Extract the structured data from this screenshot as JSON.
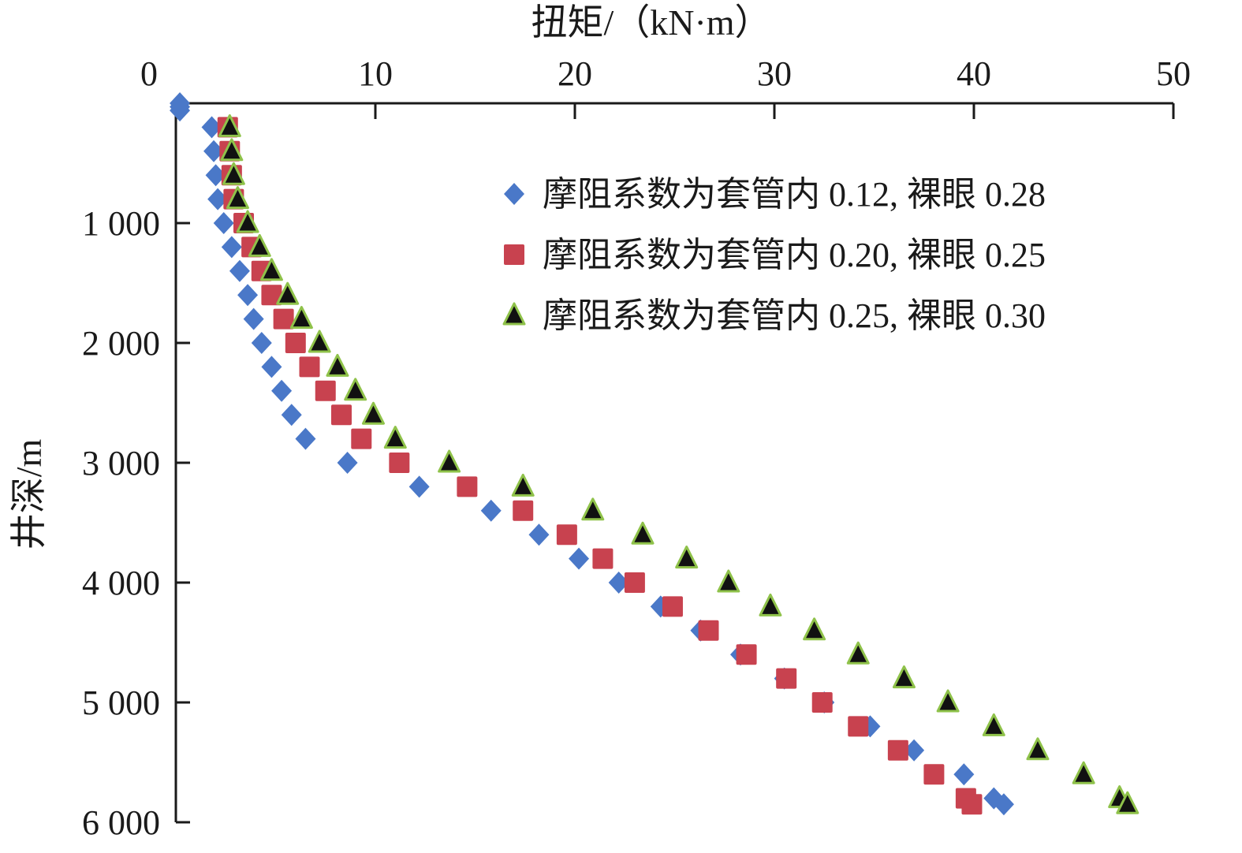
{
  "chart_data": {
    "type": "scatter",
    "xlabel": "扭矩/（kN·m）",
    "ylabel": "井深/m",
    "xlim": [
      0,
      50
    ],
    "ylim": [
      0,
      6000
    ],
    "x_axis_position": "top",
    "y_axis_inverted": true,
    "grid": false,
    "legend_position": "top-right",
    "x_ticks": [
      {
        "value": 0,
        "label": "0"
      },
      {
        "value": 10,
        "label": "10"
      },
      {
        "value": 20,
        "label": "20"
      },
      {
        "value": 30,
        "label": "30"
      },
      {
        "value": 40,
        "label": "40"
      },
      {
        "value": 50,
        "label": "50"
      }
    ],
    "y_ticks": [
      {
        "value": 1000,
        "label": "1 000"
      },
      {
        "value": 2000,
        "label": "2 000"
      },
      {
        "value": 3000,
        "label": "3 000"
      },
      {
        "value": 4000,
        "label": "4 000"
      },
      {
        "value": 5000,
        "label": "5 000"
      },
      {
        "value": 6000,
        "label": "6 000"
      }
    ],
    "series": [
      {
        "name": "摩阻系数为套管内 0.12, 裸眼 0.28",
        "marker": "diamond",
        "color": "#4a78c8",
        "points": [
          [
            0.2,
            0
          ],
          [
            0.2,
            30
          ],
          [
            0.2,
            60
          ],
          [
            1.8,
            200
          ],
          [
            1.9,
            400
          ],
          [
            2.0,
            600
          ],
          [
            2.1,
            800
          ],
          [
            2.4,
            1000
          ],
          [
            2.8,
            1200
          ],
          [
            3.2,
            1400
          ],
          [
            3.6,
            1600
          ],
          [
            3.9,
            1800
          ],
          [
            4.3,
            2000
          ],
          [
            4.8,
            2200
          ],
          [
            5.3,
            2400
          ],
          [
            5.8,
            2600
          ],
          [
            6.5,
            2800
          ],
          [
            8.6,
            3000
          ],
          [
            12.2,
            3200
          ],
          [
            15.8,
            3400
          ],
          [
            18.2,
            3600
          ],
          [
            20.2,
            3800
          ],
          [
            22.2,
            4000
          ],
          [
            24.3,
            4200
          ],
          [
            26.3,
            4400
          ],
          [
            28.3,
            4600
          ],
          [
            30.5,
            4800
          ],
          [
            32.5,
            5000
          ],
          [
            34.8,
            5200
          ],
          [
            37.0,
            5400
          ],
          [
            39.5,
            5600
          ],
          [
            41.0,
            5800
          ],
          [
            41.5,
            5850
          ]
        ]
      },
      {
        "name": "摩阻系数为套管内 0.20, 裸眼 0.25",
        "marker": "square",
        "color": "#c8424f",
        "points": [
          [
            2.6,
            200
          ],
          [
            2.7,
            400
          ],
          [
            2.8,
            600
          ],
          [
            2.9,
            800
          ],
          [
            3.4,
            1000
          ],
          [
            3.8,
            1200
          ],
          [
            4.3,
            1400
          ],
          [
            4.8,
            1600
          ],
          [
            5.4,
            1800
          ],
          [
            6.0,
            2000
          ],
          [
            6.7,
            2200
          ],
          [
            7.5,
            2400
          ],
          [
            8.3,
            2600
          ],
          [
            9.3,
            2800
          ],
          [
            11.2,
            3000
          ],
          [
            14.6,
            3200
          ],
          [
            17.4,
            3400
          ],
          [
            19.6,
            3600
          ],
          [
            21.4,
            3800
          ],
          [
            23.0,
            4000
          ],
          [
            24.9,
            4200
          ],
          [
            26.7,
            4400
          ],
          [
            28.6,
            4600
          ],
          [
            30.6,
            4800
          ],
          [
            32.4,
            5000
          ],
          [
            34.2,
            5200
          ],
          [
            36.2,
            5400
          ],
          [
            38.0,
            5600
          ],
          [
            39.6,
            5800
          ],
          [
            39.9,
            5850
          ]
        ]
      },
      {
        "name": "摩阻系数为套管内 0.25, 裸眼 0.30",
        "marker": "triangle",
        "color": "#111111",
        "edge_color": "#8fc24a",
        "points": [
          [
            2.7,
            200
          ],
          [
            2.8,
            400
          ],
          [
            2.9,
            600
          ],
          [
            3.1,
            800
          ],
          [
            3.6,
            1000
          ],
          [
            4.2,
            1200
          ],
          [
            4.8,
            1400
          ],
          [
            5.6,
            1600
          ],
          [
            6.3,
            1800
          ],
          [
            7.2,
            2000
          ],
          [
            8.1,
            2200
          ],
          [
            9.0,
            2400
          ],
          [
            9.9,
            2600
          ],
          [
            11.0,
            2800
          ],
          [
            13.7,
            3000
          ],
          [
            17.4,
            3200
          ],
          [
            20.9,
            3400
          ],
          [
            23.4,
            3600
          ],
          [
            25.6,
            3800
          ],
          [
            27.7,
            4000
          ],
          [
            29.8,
            4200
          ],
          [
            32.0,
            4400
          ],
          [
            34.2,
            4600
          ],
          [
            36.5,
            4800
          ],
          [
            38.7,
            5000
          ],
          [
            41.0,
            5200
          ],
          [
            43.2,
            5400
          ],
          [
            45.5,
            5600
          ],
          [
            47.3,
            5800
          ],
          [
            47.7,
            5850
          ]
        ]
      }
    ]
  }
}
